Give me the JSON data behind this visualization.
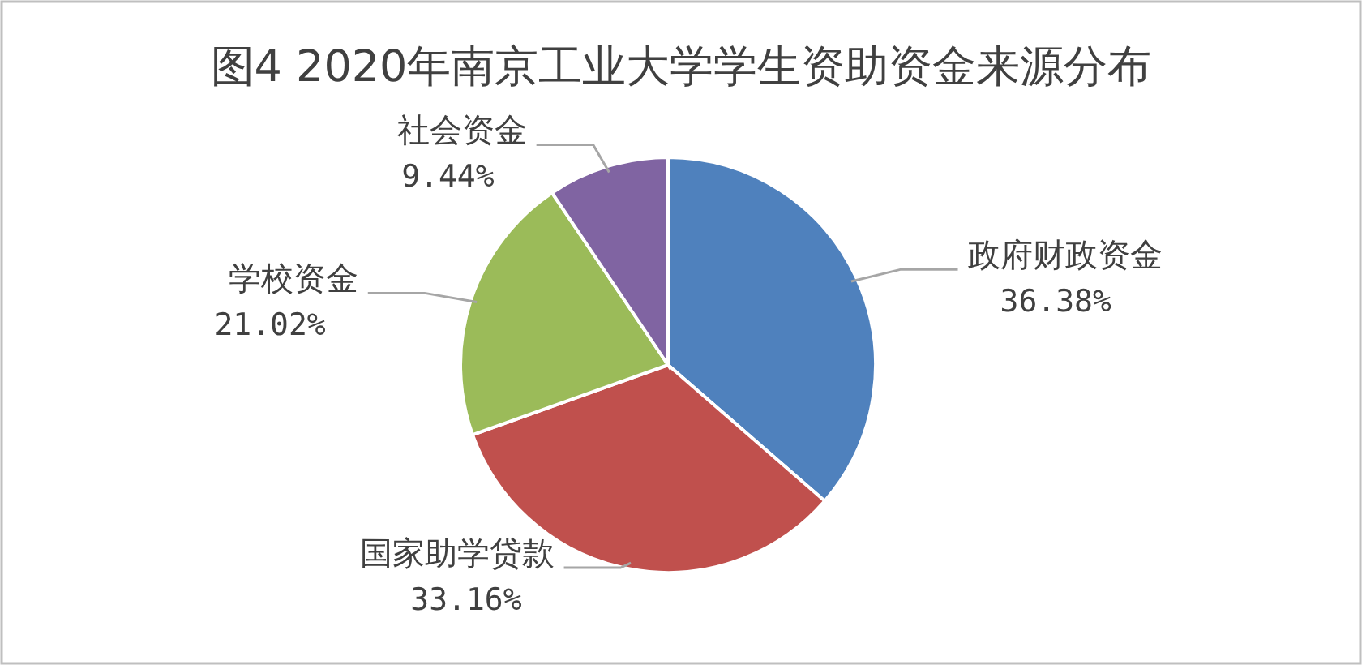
{
  "chart_data": {
    "type": "pie",
    "title": "图4 2020年南京工业大学学生资助资金来源分布",
    "categories": [
      "政府财政资金",
      "国家助学贷款",
      "学校资金",
      "社会资金"
    ],
    "values": [
      36.38,
      33.16,
      21.02,
      9.44
    ],
    "value_labels": [
      "36.38%",
      "33.16%",
      "21.02%",
      "9.44%"
    ],
    "colors": [
      "#4f81bd",
      "#c0504d",
      "#9bbb59",
      "#8064a2"
    ],
    "legend": false
  }
}
